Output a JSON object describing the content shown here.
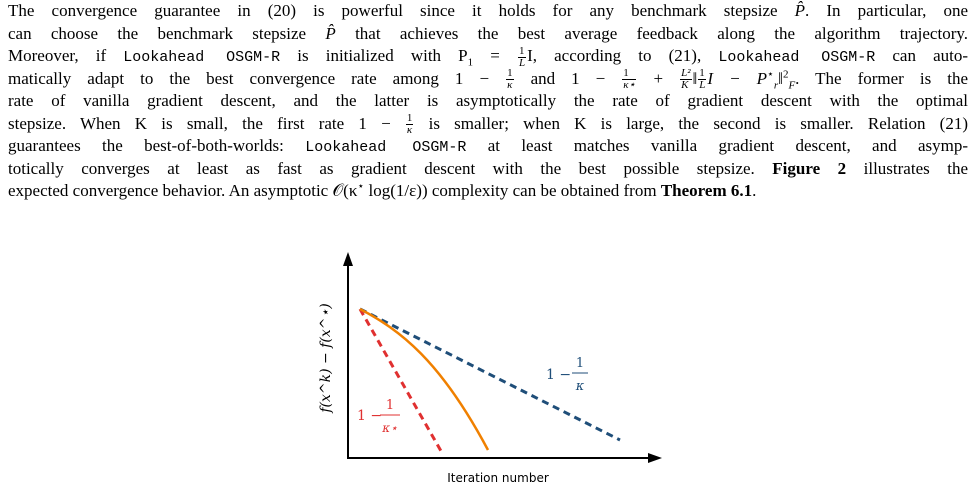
{
  "paragraph": {
    "l1a": "The convergence guarantee in (20) is powerful since it holds for any benchmark stepsize ",
    "l1b": "P̂",
    "l1c": ". In particular, one",
    "l2a": "can choose the benchmark stepsize ",
    "l2b": "P̂",
    "l2c": " that achieves the best average feedback along the algorithm trajectory.",
    "l3a": "Moreover, if ",
    "l3_code1": "Lookahead OSGM-R",
    "l3b": " is initialized with P",
    "l3_sub1": "1",
    "l3c": " = ",
    "l3_frac_num": "1",
    "l3_frac_den": "L",
    "l3d": "I, according to (21), ",
    "l3_code2": "Lookahead OSGM-R",
    "l3e": " can auto-",
    "l4a": "matically adapt to the best convergence rate among 1 − ",
    "l4_f1_num": "1",
    "l4_f1_den": "κ",
    "l4b": " and 1 − ",
    "l4_f2_num": "1",
    "l4_f2_den": "κ⋆",
    "l4c": " + ",
    "l4_f3_num": "L²",
    "l4_f3_den": "K",
    "l4d": "‖",
    "l4_f4_num": "1",
    "l4_f4_den": "L",
    "l4e": "I − P",
    "l4_sup": "⋆",
    "l4_sub": "r",
    "l4f": "‖",
    "l4_sup2": "2",
    "l4_sub2": "F",
    "l4g": ". The former is the",
    "l5": "rate of vanilla gradient descent, and the latter is asymptotically the rate of gradient descent with the optimal",
    "l6a": "stepsize. When K is small, the first rate 1 − ",
    "l6_f_num": "1",
    "l6_f_den": "κ",
    "l6b": " is smaller; when K is large, the second is smaller. Relation (21)",
    "l7a": "guarantees the best-of-both-worlds: ",
    "l7_code": "Lookahead OSGM-R",
    "l7b": " at least matches vanilla gradient descent, and asymp-",
    "l8a": "totically converges at least as fast as gradient descent with the best possible stepsize. ",
    "l8_bold": "Figure 2",
    "l8b": " illustrates the",
    "l9a": "expected convergence behavior. An asymptotic 𝒪(κ",
    "l9_sup": "⋆",
    "l9b": " log(1/ε)) complexity can be obtained from ",
    "l9_bold": "Theorem 6.1",
    "l9c": "."
  },
  "figure": {
    "ylabel": "f(x^k) − f(x^⋆)",
    "xlabel": "Iteration number",
    "label_blue_prefix": "1 −",
    "label_blue_num": "1",
    "label_blue_den": "κ",
    "label_red_prefix": "1 −",
    "label_red_num": "1",
    "label_red_den": "κ⋆",
    "colors": {
      "blue": "#1f4e79",
      "red": "#e03030",
      "orange": "#f08000"
    }
  }
}
